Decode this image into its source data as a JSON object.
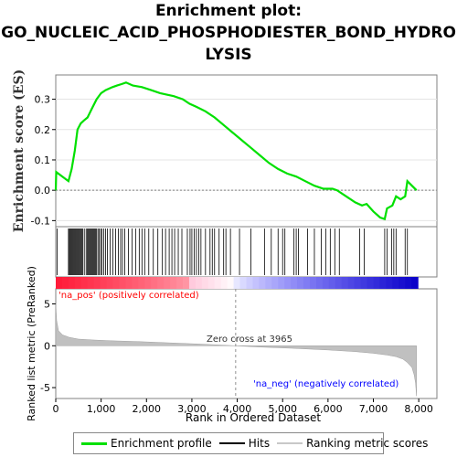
{
  "title_lines": [
    "Enrichment plot:",
    "GO_NUCLEIC_ACID_PHOSPHODIESTER_BOND_HYDRO",
    "LYSIS"
  ],
  "colors": {
    "enrichment_line": "#00e000",
    "hits": "#000000",
    "ranking_fill": "#c0c0c0",
    "pos_label": "#ff0000",
    "neg_label": "#0000ff"
  },
  "labels": {
    "pos": "'na_pos' (positively correlated)",
    "neg": "'na_neg' (negatively correlated)",
    "zero_cross": "Zero cross at 3965"
  },
  "legend": {
    "enrichment": "Enrichment profile",
    "hits": "Hits",
    "ranking": "Ranking metric scores"
  },
  "chart_data": [
    {
      "type": "line",
      "title": "Enrichment plot: GO_NUCLEIC_ACID_PHOSPHODIESTER_BOND_HYDROLYSIS",
      "ylabel": "Enrichment score (ES)",
      "xlim": [
        0,
        8400
      ],
      "ylim": [
        -0.12,
        0.38
      ],
      "yticks": [
        -0.1,
        0.0,
        0.1,
        0.2,
        0.3
      ],
      "yticklabels": [
        "-0.1",
        "0.0",
        "0.1",
        "0.2",
        "0.3"
      ],
      "series": [
        {
          "name": "Enrichment profile",
          "x": [
            0,
            10,
            280,
            350,
            420,
            480,
            550,
            620,
            700,
            800,
            900,
            1000,
            1100,
            1250,
            1350,
            1450,
            1550,
            1700,
            1900,
            2100,
            2300,
            2450,
            2600,
            2800,
            2950,
            3100,
            3300,
            3500,
            3700,
            3900,
            4100,
            4300,
            4500,
            4700,
            4900,
            5100,
            5300,
            5500,
            5700,
            5900,
            6100,
            6200,
            6400,
            6600,
            6750,
            6850,
            7000,
            7150,
            7250,
            7300,
            7420,
            7500,
            7600,
            7700,
            7750,
            7850,
            7950
          ],
          "y": [
            0.0,
            0.06,
            0.03,
            0.07,
            0.13,
            0.2,
            0.22,
            0.23,
            0.24,
            0.27,
            0.3,
            0.32,
            0.33,
            0.34,
            0.345,
            0.35,
            0.355,
            0.345,
            0.34,
            0.33,
            0.32,
            0.315,
            0.31,
            0.3,
            0.285,
            0.275,
            0.26,
            0.24,
            0.215,
            0.19,
            0.165,
            0.14,
            0.115,
            0.09,
            0.07,
            0.055,
            0.045,
            0.03,
            0.015,
            0.005,
            0.005,
            0.0,
            -0.02,
            -0.04,
            -0.05,
            -0.045,
            -0.07,
            -0.09,
            -0.095,
            -0.06,
            -0.05,
            -0.02,
            -0.03,
            -0.02,
            0.03,
            0.015,
            0.0
          ]
        }
      ]
    },
    {
      "type": "scatter",
      "title": "Hits",
      "hit_positions": [
        30,
        280,
        300,
        320,
        340,
        360,
        380,
        400,
        420,
        440,
        460,
        480,
        500,
        520,
        540,
        560,
        580,
        600,
        640,
        680,
        700,
        720,
        740,
        760,
        780,
        800,
        820,
        840,
        860,
        880,
        900,
        930,
        960,
        990,
        1020,
        1060,
        1100,
        1140,
        1200,
        1260,
        1320,
        1380,
        1430,
        1470,
        1520,
        1600,
        1680,
        1760,
        1840,
        1900,
        1960,
        2050,
        2150,
        2250,
        2350,
        2420,
        2500,
        2560,
        2620,
        2700,
        2780,
        2900,
        2960,
        3000,
        3050,
        3100,
        3150,
        3200,
        3300,
        3400,
        3450,
        3500,
        3600,
        3700,
        3750,
        3850,
        4050,
        4300,
        4600,
        4750,
        4900,
        5000,
        5050,
        5250,
        5300,
        5350,
        5550,
        5700,
        5850,
        5950,
        6050,
        6150,
        6250,
        6700,
        6800,
        7250,
        7300,
        7400,
        7450,
        7500,
        7700,
        7750
      ]
    },
    {
      "type": "area",
      "title": "Ranking metric scores",
      "xlabel": "Rank in Ordered Dataset",
      "ylabel": "Ranked list metric (PreRanked)",
      "xlim": [
        0,
        8400
      ],
      "ylim": [
        -6.3,
        6.8
      ],
      "yticks": [
        -5,
        0,
        5
      ],
      "yticklabels": [
        "-5",
        "0",
        "5"
      ],
      "xticks": [
        0,
        1000,
        2000,
        3000,
        4000,
        5000,
        6000,
        7000,
        8000
      ],
      "xticklabels": [
        "0",
        "1,000",
        "2,000",
        "3,000",
        "4,000",
        "5,000",
        "6,000",
        "7,000",
        "8,000"
      ],
      "x": [
        0,
        20,
        60,
        150,
        300,
        500,
        800,
        1200,
        1800,
        2500,
        3200,
        3965,
        4500,
        5200,
        6000,
        6600,
        7000,
        7300,
        7500,
        7650,
        7750,
        7850,
        7900,
        7930,
        7950
      ],
      "values": [
        5.0,
        3.0,
        1.8,
        1.3,
        1.0,
        0.8,
        0.7,
        0.6,
        0.5,
        0.35,
        0.2,
        0.0,
        -0.15,
        -0.3,
        -0.5,
        -0.7,
        -0.9,
        -1.1,
        -1.3,
        -1.6,
        -2.0,
        -2.6,
        -3.5,
        -4.5,
        -6.0
      ]
    }
  ]
}
